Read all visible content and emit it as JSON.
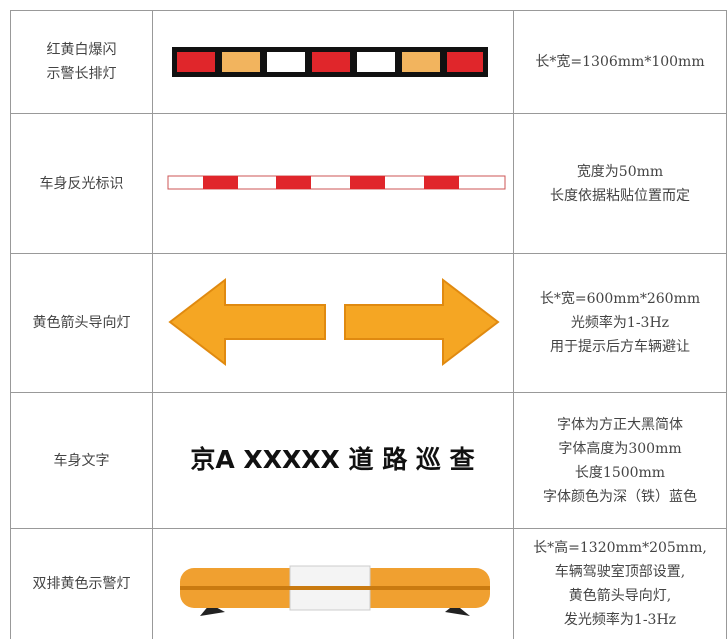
{
  "table": {
    "rows": [
      {
        "label": [
          "红黄白爆闪",
          "示警长排灯"
        ],
        "spec": [
          "长*宽=1306mm*100mm"
        ]
      },
      {
        "label": [
          "车身反光标识"
        ],
        "spec": [
          "宽度为50mm",
          "长度依据粘贴位置而定"
        ]
      },
      {
        "label": [
          "黄色箭头导向灯"
        ],
        "spec": [
          "长*宽=600mm*260mm",
          "光频率为1-3Hz",
          "用于提示后方车辆避让"
        ]
      },
      {
        "label": [
          "车身文字"
        ],
        "text": "京A XXXXX 道 路 巡 查",
        "spec": [
          "字体为方正大黑简体",
          "字体高度为300mm",
          "长度1500mm",
          "字体颜色为深（铁）蓝色"
        ]
      },
      {
        "label": [
          "双排黄色示警灯"
        ],
        "spec": [
          "长*高=1320mm*205mm,",
          "车辆驾驶室顶部设置,",
          "黄色箭头导向灯,",
          "发光频率为1-3Hz"
        ]
      }
    ]
  }
}
